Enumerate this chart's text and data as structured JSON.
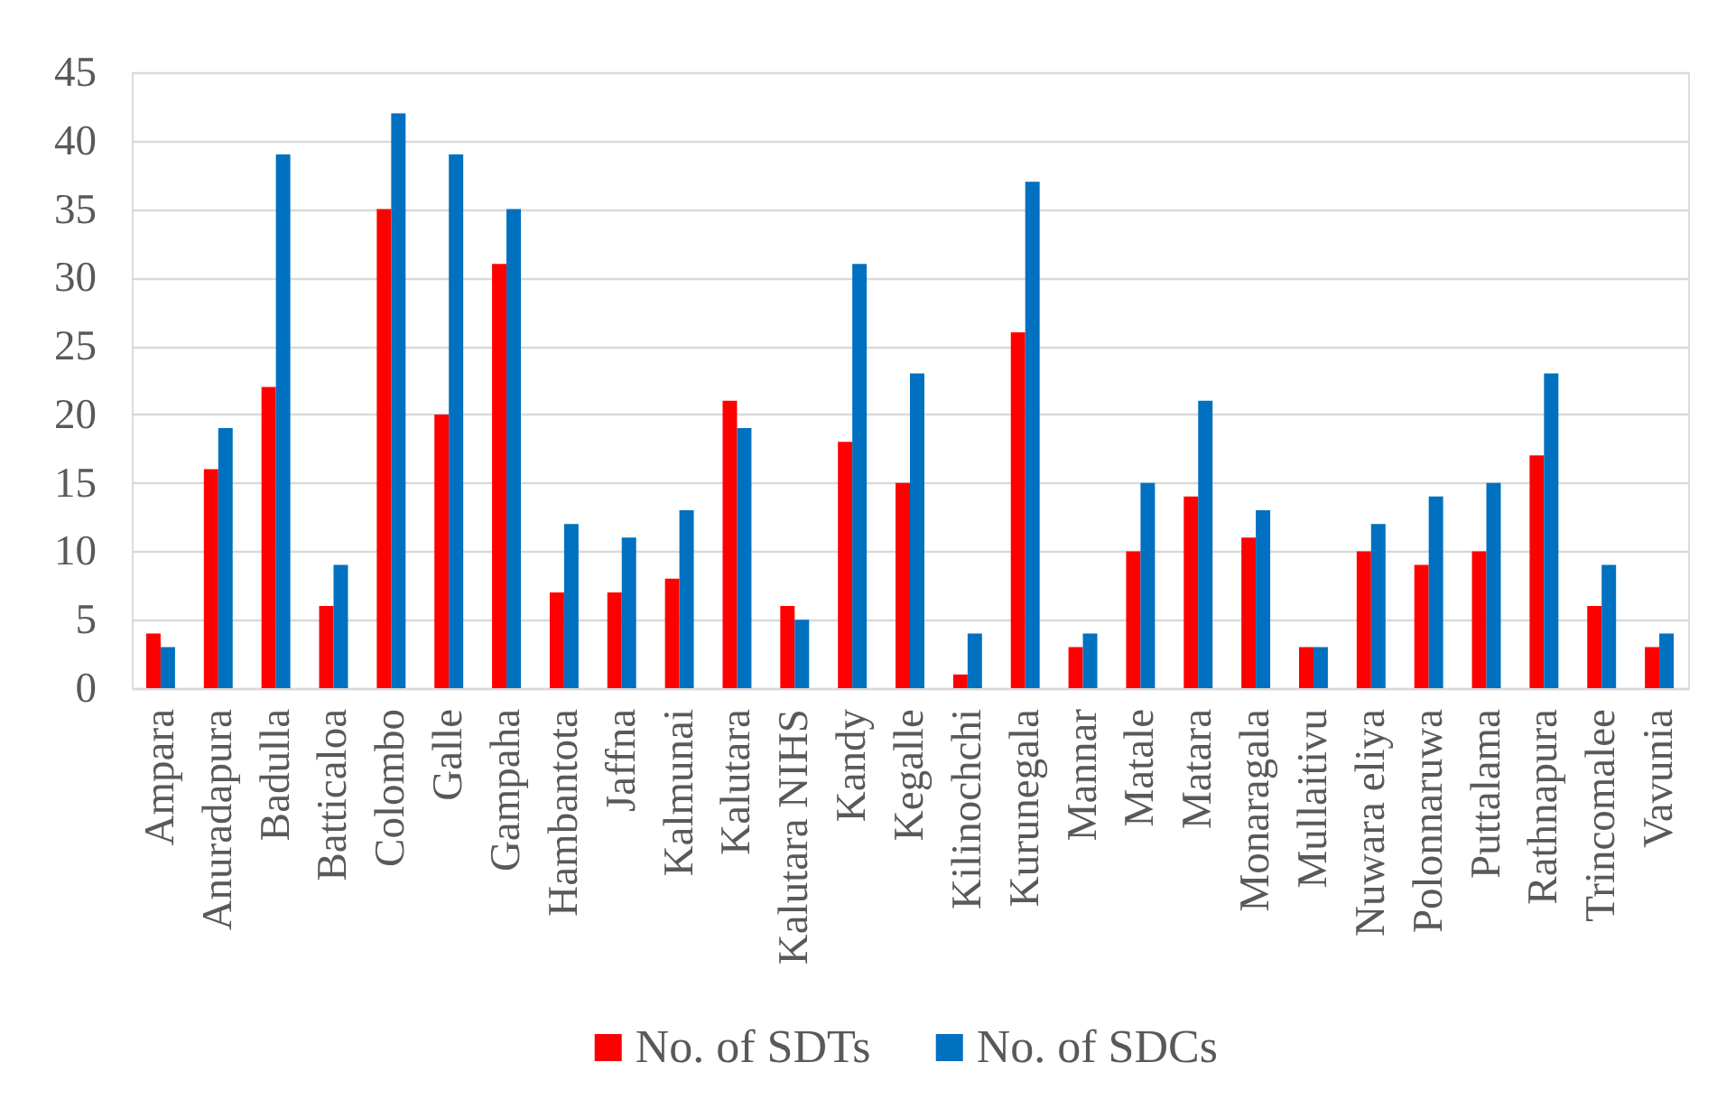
{
  "chart_data": {
    "type": "bar",
    "categories": [
      "Ampara",
      "Anuradapura",
      "Badulla",
      "Batticaloa",
      "Colombo",
      "Galle",
      "Gampaha",
      "Hambantota",
      "Jaffna",
      "Kalmunai",
      "Kalutara",
      "Kalutara NIHS",
      "Kandy",
      "Kegalle",
      "Kilinochchi",
      "Kurunegala",
      "Mannar",
      "Matale",
      "Matara",
      "Monaragala",
      "Mullaitivu",
      "Nuwara eliya",
      "Polonnaruwa",
      "Puttalama",
      "Rathnapura",
      "Trincomalee",
      "Vavunia"
    ],
    "series": [
      {
        "name": "No. of SDTs",
        "color": "#ff0000",
        "values": [
          4,
          16,
          22,
          6,
          35,
          20,
          31,
          7,
          7,
          8,
          21,
          6,
          18,
          15,
          1,
          26,
          3,
          10,
          14,
          11,
          3,
          10,
          9,
          10,
          17,
          6,
          3
        ]
      },
      {
        "name": "No. of SDCs",
        "color": "#0070c0",
        "values": [
          3,
          19,
          39,
          9,
          42,
          39,
          35,
          12,
          11,
          13,
          19,
          5,
          31,
          23,
          4,
          37,
          4,
          15,
          21,
          13,
          3,
          12,
          14,
          15,
          23,
          9,
          4
        ]
      }
    ],
    "ylim": [
      0,
      45
    ],
    "yticks": [
      0,
      5,
      10,
      15,
      20,
      25,
      30,
      35,
      40,
      45
    ],
    "grid": "y",
    "legend": "bottom"
  }
}
